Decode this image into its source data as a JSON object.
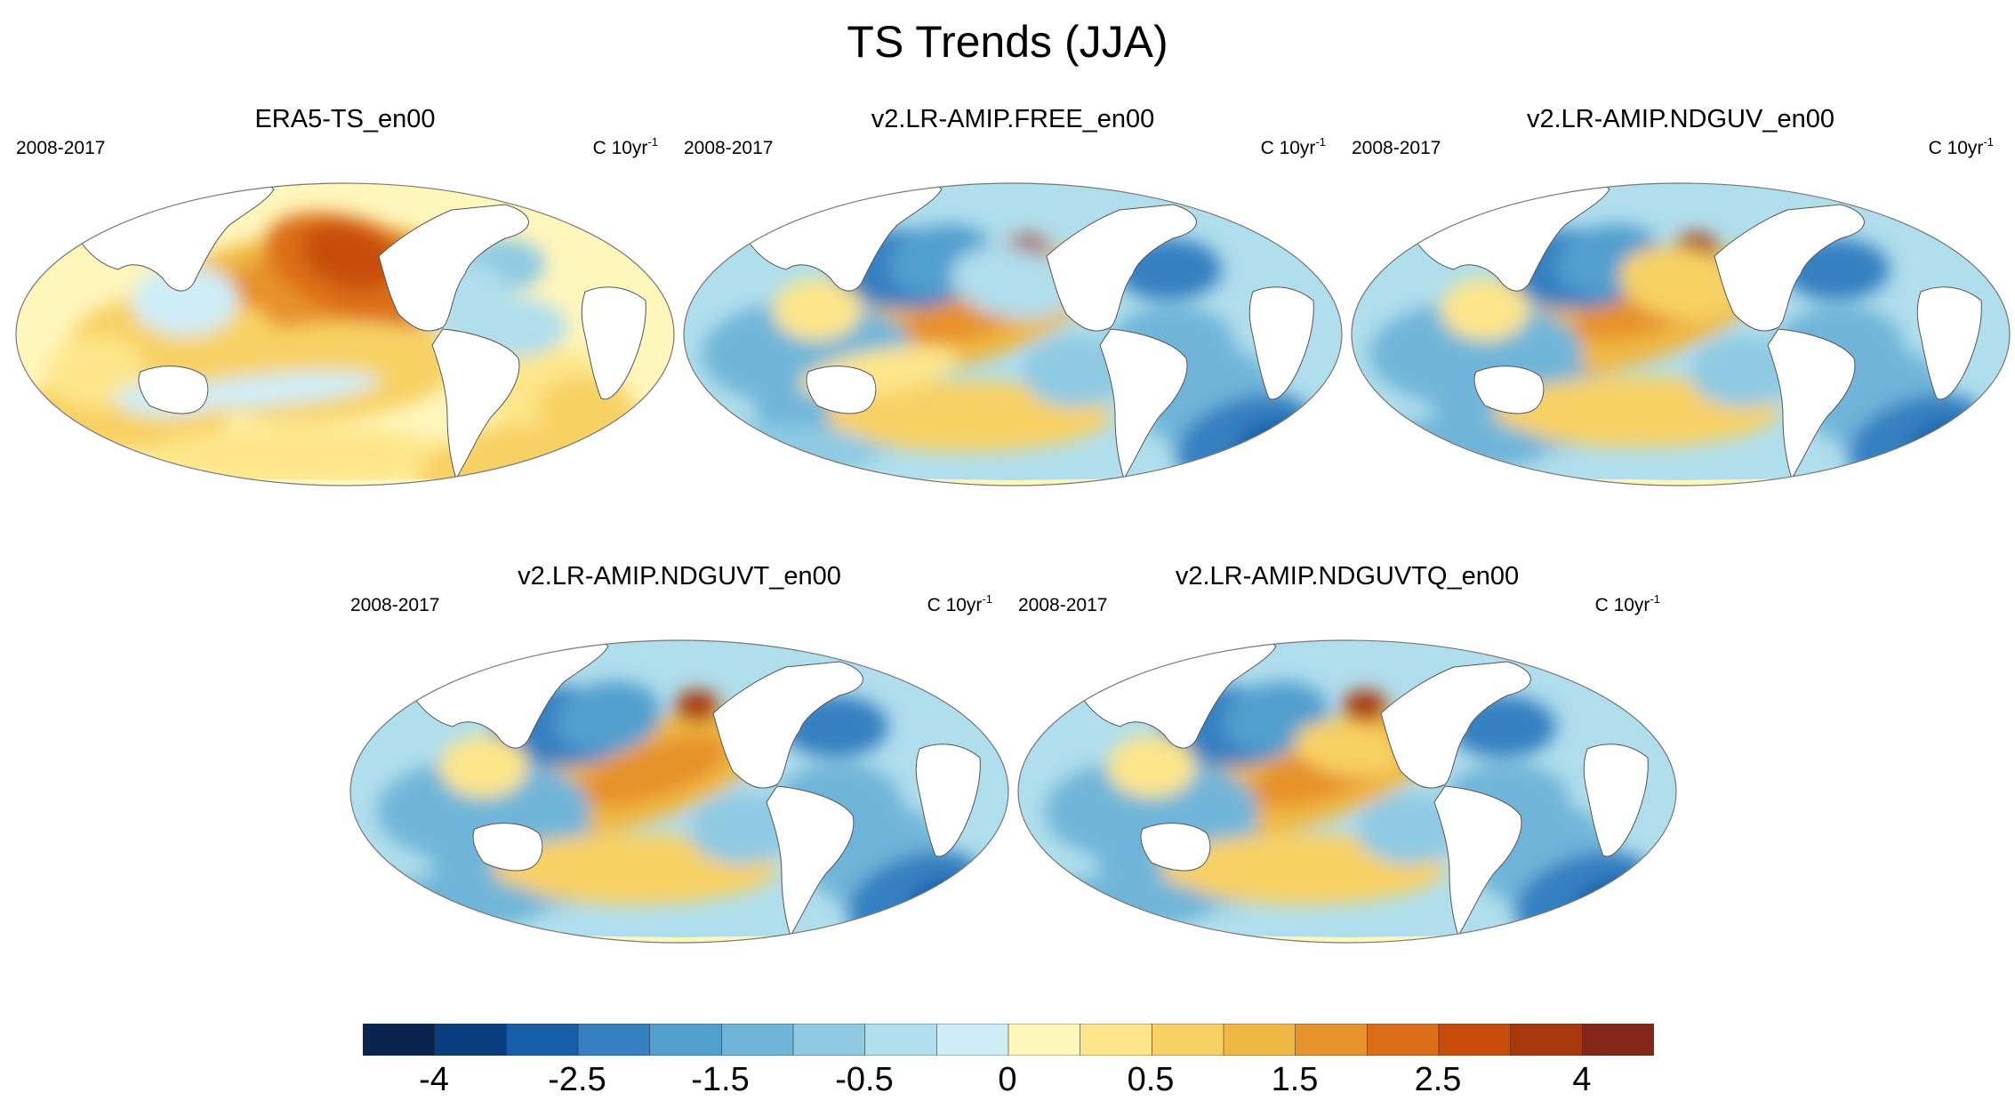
{
  "figure": {
    "title": "TS Trends (JJA)",
    "period": "2008-2017",
    "units": "C 10yr",
    "units_exponent": "-1"
  },
  "panels": [
    {
      "title": "ERA5-TS_en00",
      "pattern": "era5"
    },
    {
      "title": "v2.LR-AMIP.FREE_en00",
      "pattern": "free"
    },
    {
      "title": "v2.LR-AMIP.NDGUV_en00",
      "pattern": "nduv"
    },
    {
      "title": "v2.LR-AMIP.NDGUVT_en00",
      "pattern": "nduvt"
    },
    {
      "title": "v2.LR-AMIP.NDGUVTQ_en00",
      "pattern": "nduvtq"
    }
  ],
  "colorbar": {
    "colors": [
      "#08244e",
      "#0a3d80",
      "#165ea7",
      "#3480c1",
      "#519fcf",
      "#6fb5d9",
      "#8fcae3",
      "#b0deec",
      "#cfedf6",
      "#fff6bc",
      "#fde68a",
      "#f8d165",
      "#f0b842",
      "#e7922a",
      "#dc6d18",
      "#c84d0c",
      "#a8370b",
      "#842718"
    ],
    "labels": [
      "-4",
      "-2.5",
      "-1.5",
      "-0.5",
      "0",
      "0.5",
      "1.5",
      "2.5",
      "4"
    ]
  },
  "chart_data": {
    "type": "heatmap",
    "title": "TS Trends (JJA)",
    "variable": "TS (surface temperature) trend",
    "units": "C 10yr-1",
    "period": "2008-2017",
    "season": "JJA",
    "colorbar_levels": [
      -5,
      -4,
      -3,
      -2.5,
      -2,
      -1.5,
      -1,
      -0.5,
      -0.25,
      0,
      0.25,
      0.5,
      1,
      1.5,
      2,
      2.5,
      3,
      4,
      5
    ],
    "colorbar_labels": [
      -4,
      -2.5,
      -1.5,
      -0.5,
      0,
      0.5,
      1.5,
      2.5,
      4
    ],
    "maps": [
      "ERA5-TS_en00",
      "v2.LR-AMIP.FREE_en00",
      "v2.LR-AMIP.NDGUV_en00",
      "v2.LR-AMIP.NDGUVT_en00",
      "v2.LR-AMIP.NDGUVTQ_en00"
    ]
  }
}
